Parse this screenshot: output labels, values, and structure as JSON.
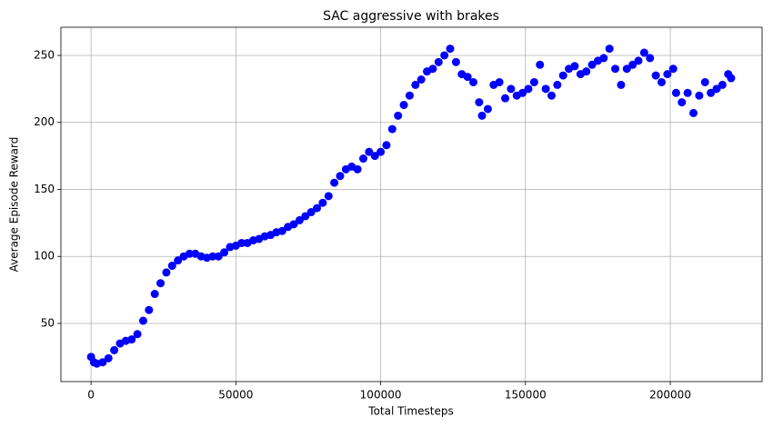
{
  "chart_data": {
    "type": "scatter",
    "title": "SAC aggressive with brakes",
    "x_label": "Total Timesteps",
    "y_label": "Average Episode Reward",
    "color": "#0000ff",
    "grid": true,
    "xlim": [
      -10400,
      231700
    ],
    "ylim": [
      6.6,
      271
    ],
    "xticks": [
      0,
      50000,
      100000,
      150000,
      200000
    ],
    "yticks": [
      50,
      100,
      150,
      200,
      250
    ],
    "x": [
      0,
      1000,
      2000,
      4000,
      6000,
      8000,
      10000,
      12000,
      14000,
      16000,
      18000,
      20000,
      22000,
      24000,
      26000,
      28000,
      30000,
      32000,
      34000,
      36000,
      38000,
      40000,
      42000,
      44000,
      46000,
      48000,
      50000,
      52000,
      54000,
      56000,
      58000,
      60000,
      62000,
      64000,
      66000,
      68000,
      70000,
      72000,
      74000,
      76000,
      78000,
      80000,
      82000,
      84000,
      86000,
      88000,
      90000,
      92000,
      94000,
      96000,
      98000,
      100000,
      102000,
      104000,
      106000,
      108000,
      110000,
      112000,
      114000,
      116000,
      118000,
      120000,
      122000,
      124000,
      126000,
      128000,
      130000,
      132000,
      134000,
      135000,
      137000,
      139000,
      141000,
      143000,
      145000,
      147000,
      149000,
      151000,
      153000,
      155000,
      157000,
      159000,
      161000,
      163000,
      165000,
      167000,
      169000,
      171000,
      173000,
      175000,
      177000,
      179000,
      181000,
      183000,
      185000,
      187000,
      189000,
      191000,
      193000,
      195000,
      197000,
      199000,
      201000,
      202000,
      204000,
      206000,
      208000,
      210000,
      212000,
      214000,
      216000,
      218000,
      220000,
      221000
    ],
    "values": [
      25,
      21,
      20,
      21,
      24,
      30,
      35,
      37,
      38,
      42,
      52,
      60,
      72,
      80,
      88,
      93,
      97,
      100,
      102,
      102,
      100,
      99,
      100,
      100,
      103,
      107,
      108,
      110,
      110,
      112,
      113,
      115,
      116,
      118,
      119,
      122,
      124,
      127,
      130,
      133,
      136,
      140,
      145,
      155,
      160,
      165,
      167,
      165,
      173,
      178,
      175,
      178,
      183,
      195,
      205,
      213,
      220,
      228,
      232,
      238,
      240,
      245,
      250,
      255,
      245,
      236,
      234,
      230,
      215,
      205,
      210,
      228,
      230,
      218,
      225,
      220,
      222,
      225,
      230,
      243,
      225,
      220,
      228,
      235,
      240,
      242,
      236,
      238,
      243,
      246,
      248,
      255,
      240,
      228,
      240,
      243,
      246,
      252,
      248,
      235,
      230,
      236,
      240,
      222,
      215,
      222,
      207,
      220,
      230,
      222,
      225,
      228,
      236,
      233
    ]
  }
}
